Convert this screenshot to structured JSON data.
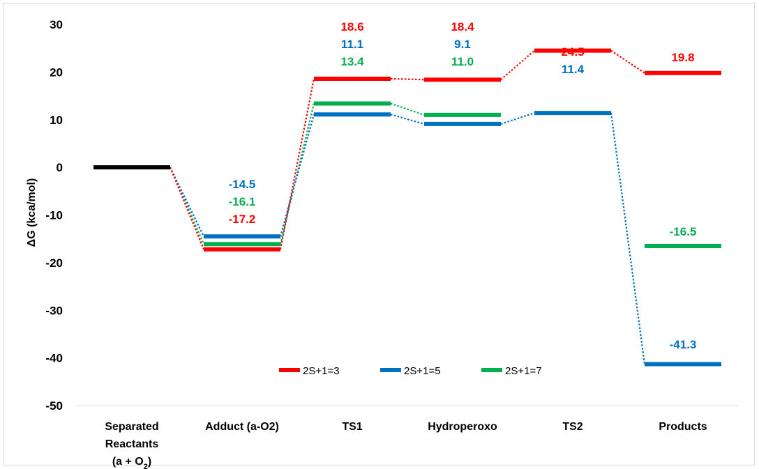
{
  "chart_data": {
    "type": "line",
    "ylabel": "ΔG (kca/mol)",
    "ylim": [
      -50,
      30
    ],
    "yticks": [
      "30",
      "20",
      "10",
      "0",
      "-10",
      "-20",
      "-30",
      "-40",
      "-50"
    ],
    "categories": [
      {
        "lines": [
          "Separated",
          "Reactants",
          "(a + O2)"
        ]
      },
      {
        "lines": [
          "Adduct (a-O2)"
        ]
      },
      {
        "lines": [
          "TS1"
        ]
      },
      {
        "lines": [
          "Hydroperoxo"
        ]
      },
      {
        "lines": [
          "TS2"
        ]
      },
      {
        "lines": [
          "Products"
        ]
      }
    ],
    "reference": {
      "value": 0,
      "color": "#000000"
    },
    "series": [
      {
        "name": "2S+1=3",
        "color": "#ff0000",
        "values": [
          0,
          -17.2,
          18.6,
          18.4,
          24.5,
          19.8
        ],
        "labels": [
          "",
          "-17.2",
          "18.6",
          "18.4",
          "24.5",
          "19.8"
        ]
      },
      {
        "name": "2S+1=5",
        "color": "#0070c0",
        "values": [
          0,
          -14.5,
          11.1,
          9.1,
          11.4,
          -41.3
        ],
        "labels": [
          "",
          "-14.5",
          "11.1",
          "9.1",
          "11.4",
          "-41.3"
        ]
      },
      {
        "name": "2S+1=7",
        "color": "#00b050",
        "values": [
          0,
          -16.1,
          13.4,
          11.0,
          null,
          -16.5
        ],
        "labels": [
          "",
          "-16.1",
          "13.4",
          "11.0",
          "",
          "-16.5"
        ]
      }
    ],
    "legend_position": "bottom-center"
  }
}
